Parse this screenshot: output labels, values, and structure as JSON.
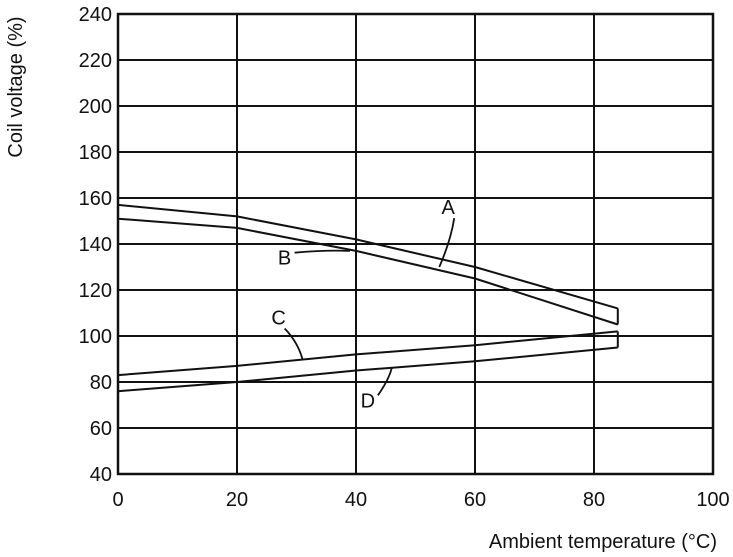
{
  "chart_data": {
    "type": "line",
    "title": "",
    "xlabel": "Ambient temperature (°C)",
    "ylabel": "Coil voltage (%)",
    "xlim": [
      0,
      100
    ],
    "ylim": [
      40,
      240
    ],
    "xticks": [
      0,
      20,
      40,
      60,
      80,
      100
    ],
    "yticks": [
      40,
      60,
      80,
      100,
      120,
      140,
      160,
      180,
      200,
      220,
      240
    ],
    "xtick_labels": [
      "0",
      "20",
      "40",
      "60",
      "80",
      "100"
    ],
    "ytick_labels": [
      "40",
      "60",
      "80",
      "100",
      "120",
      "140",
      "160",
      "180",
      "200",
      "220",
      "240"
    ],
    "grid": true,
    "legend": "none",
    "series": [
      {
        "name": "A",
        "x": [
          0,
          20,
          40,
          60,
          84
        ],
        "y": [
          157,
          152,
          142,
          130,
          112
        ],
        "label_at": [
          55.5,
          153
        ],
        "leader_to": [
          54,
          130
        ]
      },
      {
        "name": "B",
        "x": [
          0,
          20,
          40,
          60,
          84
        ],
        "y": [
          151,
          147,
          137,
          125,
          105
        ],
        "label_at": [
          28,
          131
        ],
        "leader_to": [
          39,
          137
        ]
      },
      {
        "name": "C",
        "x": [
          0,
          20,
          40,
          60,
          84
        ],
        "y": [
          83,
          87,
          92,
          96,
          102
        ],
        "label_at": [
          27,
          105
        ],
        "leader_to": [
          31,
          90
        ]
      },
      {
        "name": "D",
        "x": [
          0,
          20,
          40,
          60,
          84
        ],
        "y": [
          76,
          80,
          85,
          89,
          95
        ],
        "label_at": [
          42,
          69
        ],
        "leader_to": [
          46,
          86
        ]
      }
    ],
    "caps": [
      {
        "x": 84,
        "y": [
          112,
          105
        ]
      },
      {
        "x": 84,
        "y": [
          102,
          95
        ]
      }
    ]
  }
}
